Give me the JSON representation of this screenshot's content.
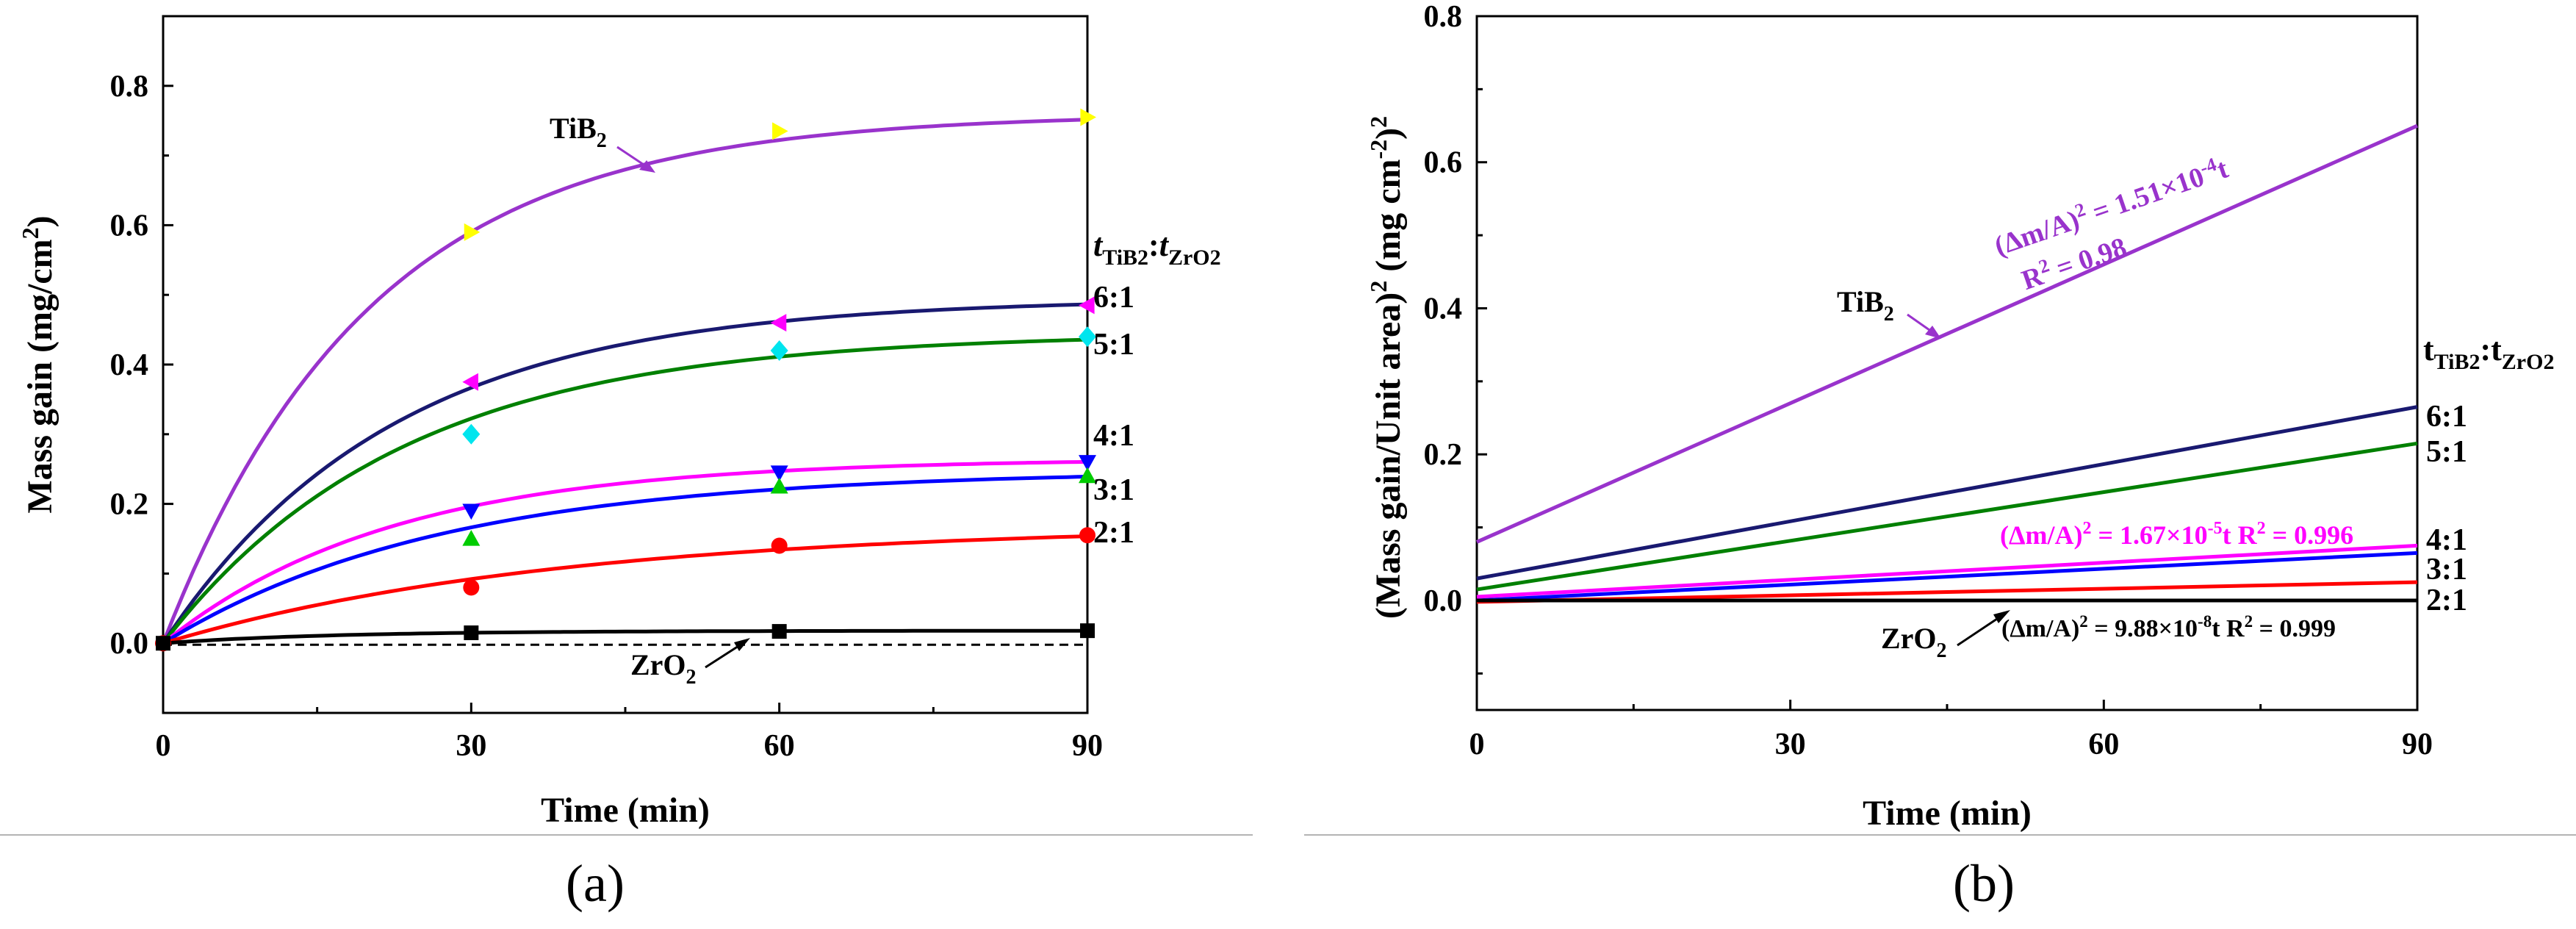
{
  "figure": {
    "panel_a_label": "(a)",
    "panel_b_label": "(b)"
  },
  "chart_data": [
    {
      "type": "scatter",
      "subtype": "scatter-with-fitted-curves",
      "title": "",
      "xlabel": "Time (min)",
      "ylabel": "Mass gain (mg/cm2)",
      "ylabel_parts": {
        "base": "Mass gain (mg/cm",
        "sup": "2",
        "tail": ")"
      },
      "xlim": [
        0,
        90
      ],
      "ylim": [
        -0.1,
        0.9
      ],
      "xticks": [
        0,
        30,
        60,
        90
      ],
      "xtick_labels": [
        "0",
        "30",
        "60",
        "90"
      ],
      "yticks": [
        0.0,
        0.2,
        0.4,
        0.6,
        0.8
      ],
      "ytick_labels": [
        "0.0",
        "0.2",
        "0.4",
        "0.6",
        "0.8"
      ],
      "grid": false,
      "legend_title": "tTiB2:tZrO2",
      "legend_title_parts": {
        "t1": "t",
        "s1": "TiB2",
        "colon": ":",
        "t2": "t",
        "s2": "ZrO2"
      },
      "reference_line": {
        "y": 0.0,
        "style": "dashed"
      },
      "series": [
        {
          "name": "TiB2",
          "label_parts": {
            "base": "TiB",
            "sub": "2"
          },
          "color": "#9933CC",
          "marker": "triangle-right",
          "marker_color": "#FFFF00",
          "x": [
            0,
            30,
            60,
            90
          ],
          "y": [
            0.0,
            0.59,
            0.735,
            0.755
          ],
          "fit_a": 0.76,
          "fit_k": 0.05
        },
        {
          "name": "6:1",
          "color": "#191970",
          "marker": "triangle-left",
          "marker_color": "#FF00FF",
          "x": [
            0,
            30,
            60,
            90
          ],
          "y": [
            0.0,
            0.375,
            0.46,
            0.485
          ],
          "fit_a": 0.495,
          "fit_k": 0.045
        },
        {
          "name": "5:1",
          "color": "#008000",
          "marker": "diamond",
          "marker_color": "#00E5EE",
          "x": [
            0,
            30,
            60,
            90
          ],
          "y": [
            0.0,
            0.3,
            0.42,
            0.44
          ],
          "fit_a": 0.445,
          "fit_k": 0.043
        },
        {
          "name": "4:1",
          "color": "#FF00FF",
          "marker": "triangle-down",
          "marker_color": "#0000FF",
          "x": [
            0,
            30,
            60,
            90
          ],
          "y": [
            0.0,
            0.19,
            0.245,
            0.26
          ],
          "fit_a": 0.265,
          "fit_k": 0.045
        },
        {
          "name": "3:1",
          "color": "#0000FF",
          "marker": "triangle-up",
          "marker_color": "#00CC00",
          "x": [
            0,
            30,
            60,
            90
          ],
          "y": [
            0.0,
            0.15,
            0.225,
            0.24
          ],
          "fit_a": 0.248,
          "fit_k": 0.037
        },
        {
          "name": "2:1",
          "color": "#FF0000",
          "marker": "circle",
          "marker_color": "#FF0000",
          "x": [
            0,
            30,
            60,
            90
          ],
          "y": [
            0.0,
            0.08,
            0.14,
            0.155
          ],
          "fit_a": 0.17,
          "fit_k": 0.026
        },
        {
          "name": "ZrO2",
          "label_parts": {
            "base": "ZrO",
            "sub": "2"
          },
          "color": "#000000",
          "marker": "square",
          "marker_color": "#000000",
          "x": [
            0,
            30,
            60,
            90
          ],
          "y": [
            0.0,
            0.015,
            0.017,
            0.018
          ],
          "fit_a": 0.018,
          "fit_k": 0.06
        }
      ]
    },
    {
      "type": "line",
      "title": "",
      "xlabel": "Time (min)",
      "ylabel": "(Mass gain/Unit area)2 (mg cm-2)2",
      "ylabel_parts": {
        "a": "(Mass gain/Unit area)",
        "sup1": "2",
        "b": " (mg cm",
        "sup2": "-2",
        "c": ")",
        "sup3": "2"
      },
      "xlim": [
        0,
        90
      ],
      "ylim": [
        -0.15,
        0.8
      ],
      "xticks": [
        0,
        30,
        60,
        90
      ],
      "xtick_labels": [
        "0",
        "30",
        "60",
        "90"
      ],
      "yticks": [
        0.0,
        0.2,
        0.4,
        0.6,
        0.8
      ],
      "ytick_labels": [
        "0.0",
        "0.2",
        "0.4",
        "0.6",
        "0.8"
      ],
      "grid": false,
      "legend_title": "tTiB2:tZrO2",
      "legend_title_parts": {
        "t1": "t",
        "s1": "TiB2",
        "colon": ":",
        "t2": "t",
        "s2": "ZrO2"
      },
      "series": [
        {
          "name": "TiB2",
          "label_parts": {
            "base": "TiB",
            "sub": "2"
          },
          "color": "#9933CC",
          "x": [
            0,
            90
          ],
          "y": [
            0.08,
            0.65
          ]
        },
        {
          "name": "6:1",
          "color": "#191970",
          "x": [
            0,
            90
          ],
          "y": [
            0.03,
            0.265
          ]
        },
        {
          "name": "5:1",
          "color": "#008000",
          "x": [
            0,
            90
          ],
          "y": [
            0.015,
            0.215
          ]
        },
        {
          "name": "4:1",
          "color": "#FF00FF",
          "x": [
            0,
            90
          ],
          "y": [
            0.005,
            0.075
          ]
        },
        {
          "name": "3:1",
          "color": "#0000FF",
          "x": [
            0,
            90
          ],
          "y": [
            0.0,
            0.065
          ]
        },
        {
          "name": "2:1",
          "color": "#FF0000",
          "x": [
            0,
            90
          ],
          "y": [
            -0.002,
            0.025
          ]
        },
        {
          "name": "ZrO2",
          "label_parts": {
            "base": "ZrO",
            "sub": "2"
          },
          "color": "#000000",
          "x": [
            0,
            90
          ],
          "y": [
            0.0,
            0.0
          ]
        }
      ],
      "annotations": {
        "tib2_eq": {
          "a": "(Δm/A)",
          "sup1": "2",
          "b": " = 1.51×10",
          "sup2": "-4",
          "c": "t"
        },
        "tib2_r2": {
          "a": "R",
          "sup": "2",
          "b": " = 0.98"
        },
        "ratio41_eq": {
          "a": "(Δm/A)",
          "sup1": "2",
          "b": " = 1.67×10",
          "sup2": "-5",
          "c": "t R",
          "sup3": "2",
          "d": " = 0.996"
        },
        "zro2_eq": {
          "a": "(Δm/A)",
          "sup1": "2",
          "b": " = 9.88×10",
          "sup2": "-8",
          "c": "t R",
          "sup3": "2",
          "d": " = 0.999"
        }
      }
    }
  ]
}
